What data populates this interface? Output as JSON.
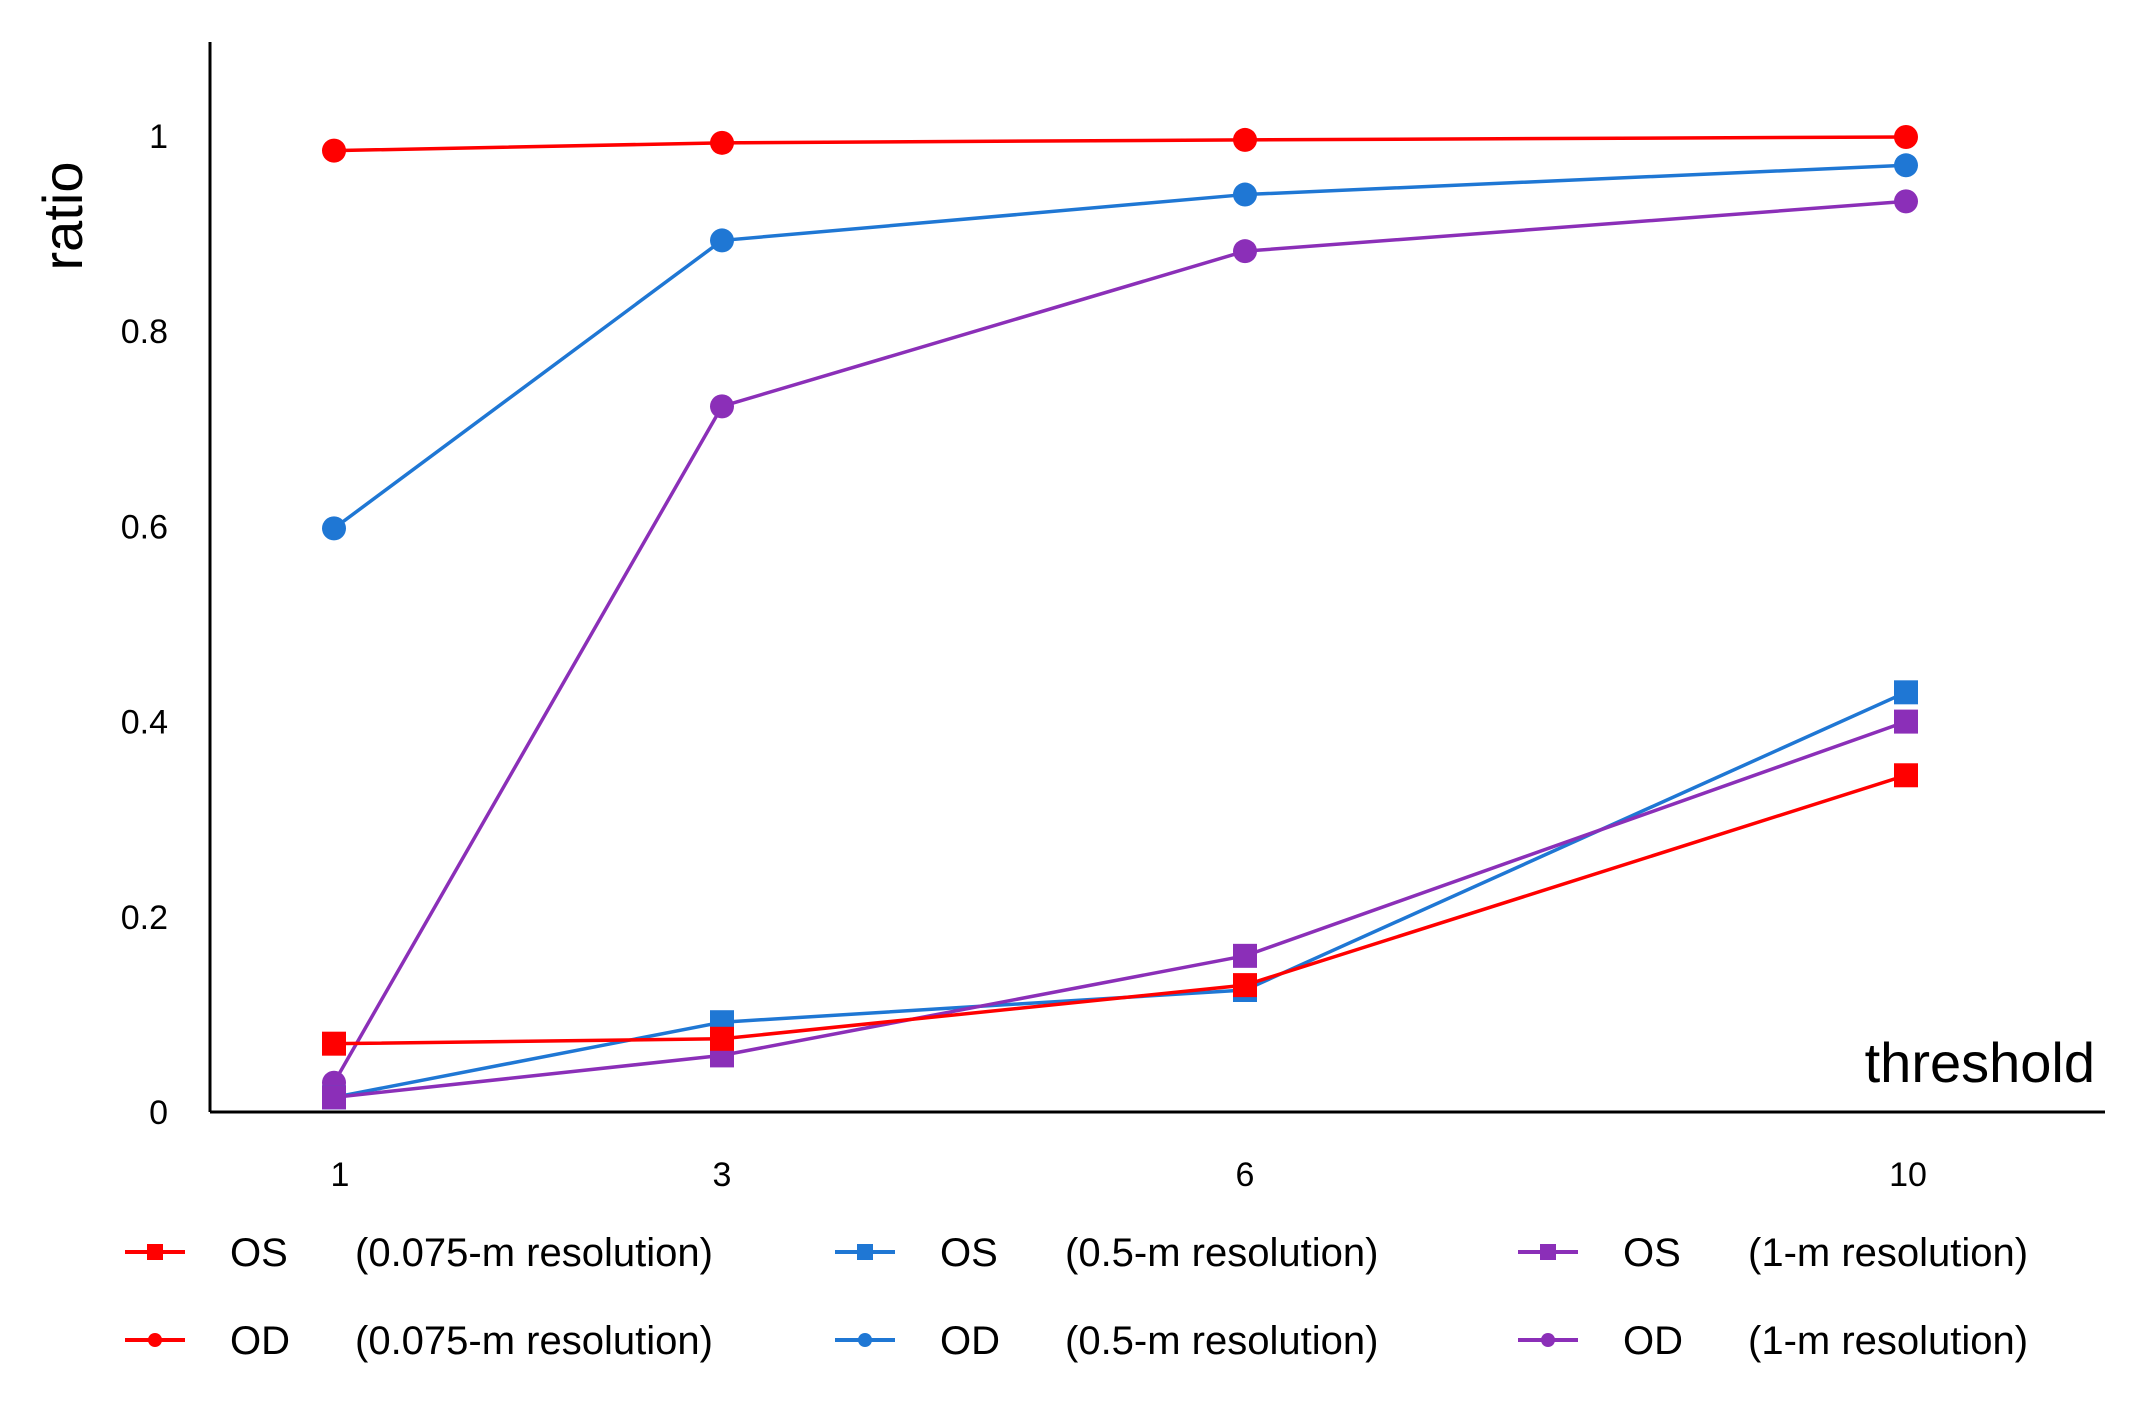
{
  "chart_data": {
    "type": "line",
    "title": "",
    "xlabel": "threshold",
    "ylabel": "ratio",
    "categories": [
      "1",
      "3",
      "6",
      "10"
    ],
    "x": [
      1,
      3,
      6,
      10
    ],
    "ylim": [
      0,
      1.1
    ],
    "yticks": [
      "0",
      "0.2",
      "0.4",
      "0.6",
      "0.8",
      "1"
    ],
    "ytick_values": [
      0,
      0.2,
      0.4,
      0.6,
      0.8,
      1
    ],
    "grid": false,
    "legend_position": "bottom",
    "series": [
      {
        "name": "OS",
        "label": "(0.075-m resolution)",
        "color": "#ff0000",
        "marker": "square",
        "values": [
          0.07,
          0.075,
          0.13,
          0.345
        ]
      },
      {
        "name": "OD",
        "label": "(0.075-m resolution)",
        "color": "#ff0000",
        "marker": "circle",
        "values": [
          0.985,
          0.993,
          0.996,
          0.999
        ]
      },
      {
        "name": "OS",
        "label": "(0.5-m resolution)",
        "color": "#1f77d4",
        "marker": "square",
        "values": [
          0.015,
          0.092,
          0.125,
          0.43
        ]
      },
      {
        "name": "OD",
        "label": "(0.5-m resolution)",
        "color": "#1f77d4",
        "marker": "circle",
        "values": [
          0.598,
          0.893,
          0.94,
          0.97
        ]
      },
      {
        "name": "OS",
        "label": "(1-m resolution)",
        "color": "#8b2fb8",
        "marker": "square",
        "values": [
          0.015,
          0.058,
          0.16,
          0.4
        ]
      },
      {
        "name": "OD",
        "label": "(1-m resolution)",
        "color": "#8b2fb8",
        "marker": "circle",
        "values": [
          0.03,
          0.723,
          0.882,
          0.933
        ]
      }
    ]
  }
}
